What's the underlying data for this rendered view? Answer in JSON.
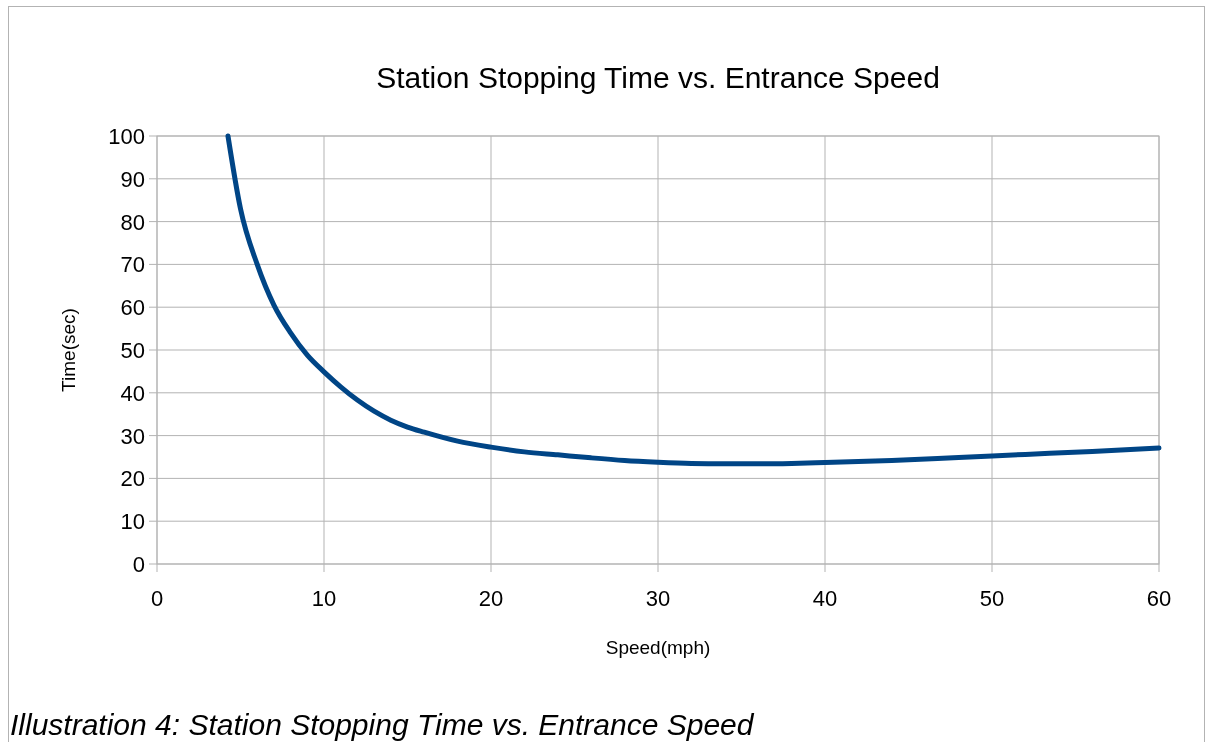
{
  "chart_data": {
    "type": "line",
    "title": "Station Stopping Time vs. Entrance Speed",
    "xlabel": "Speed(mph)",
    "ylabel": "Time(sec)",
    "annotations": [
      "Illustration 4: Station Stopping Time vs. Entrance Speed"
    ],
    "x": [
      4.25,
      5,
      6,
      7,
      8,
      9,
      10,
      11,
      12,
      13,
      14,
      15,
      16,
      18,
      20,
      22,
      24,
      26,
      28,
      30,
      32,
      34,
      36,
      38,
      40,
      44,
      48,
      52,
      56,
      60
    ],
    "series": [
      {
        "color": "#004586",
        "values": [
          100,
          83,
          70,
          60.5,
          54,
          48.8,
          44.9,
          41.4,
          38.3,
          35.7,
          33.6,
          32,
          30.8,
          28.7,
          27.3,
          26.2,
          25.5,
          24.8,
          24.2,
          23.8,
          23.5,
          23.4,
          23.4,
          23.5,
          23.7,
          24.2,
          24.9,
          25.6,
          26.3,
          27.1
        ]
      }
    ],
    "xlim": [
      0,
      60
    ],
    "ylim": [
      0,
      100
    ],
    "xticks": [
      0,
      10,
      20,
      30,
      40,
      50,
      60
    ],
    "yticks": [
      0,
      10,
      20,
      30,
      40,
      50,
      60,
      70,
      80,
      90,
      100
    ],
    "grid": true,
    "marker": "none",
    "line_style": "solid"
  }
}
